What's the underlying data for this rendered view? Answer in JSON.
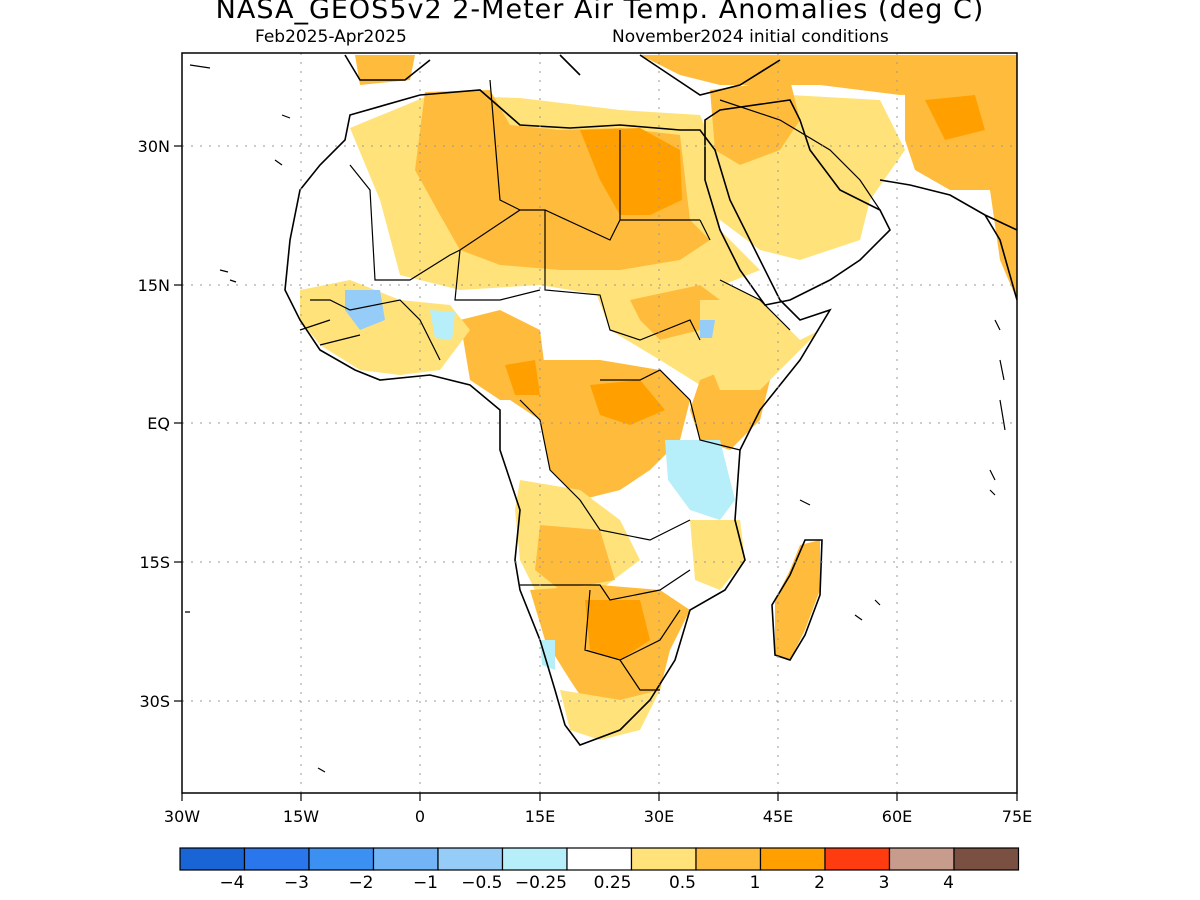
{
  "title": "NASA_GEOS5v2 2-Meter Air Temp. Anomalies (deg C)",
  "subtitle_left": "Feb2025-Apr2025",
  "subtitle_right": "November2024 initial conditions",
  "map": {
    "region": "Africa",
    "lon_range": [
      -30,
      75
    ],
    "lat_range": [
      -40,
      40
    ],
    "lon_ticks": [
      "30W",
      "15W",
      "0",
      "15E",
      "30E",
      "45E",
      "60E",
      "75E"
    ],
    "lat_ticks": [
      "30N",
      "15N",
      "EQ",
      "15S",
      "30S"
    ],
    "gridlines": true
  },
  "colorbar": {
    "colors": [
      "#1a65d6",
      "#2a76ec",
      "#3c90f2",
      "#72b4f6",
      "#96ccf8",
      "#b6effa",
      "#ffffff",
      "#ffe37a",
      "#ffbc3c",
      "#ffa000",
      "#ff3c10",
      "#c89c8c",
      "#7a5042"
    ],
    "labels": [
      "-4",
      "-3",
      "-2",
      "-1",
      "-0.5",
      "-0.25",
      "0.25",
      "0.5",
      "1",
      "2",
      "3",
      "4"
    ]
  },
  "anomaly_regions": [
    {
      "name": "Sahara",
      "class": "0.5 to 2"
    },
    {
      "name": "Arabian Peninsula",
      "class": "0.25 to 1"
    },
    {
      "name": "Central Africa",
      "class": "0.5 to 2"
    },
    {
      "name": "Southern Africa",
      "class": "0.5 to 1"
    },
    {
      "name": "Madagascar",
      "class": "0.25 to 1"
    },
    {
      "name": "Lake Victoria / Tanzania",
      "class": "-1 to -0.25"
    },
    {
      "name": "West Africa coast",
      "class": "-1 to -0.25"
    }
  ]
}
